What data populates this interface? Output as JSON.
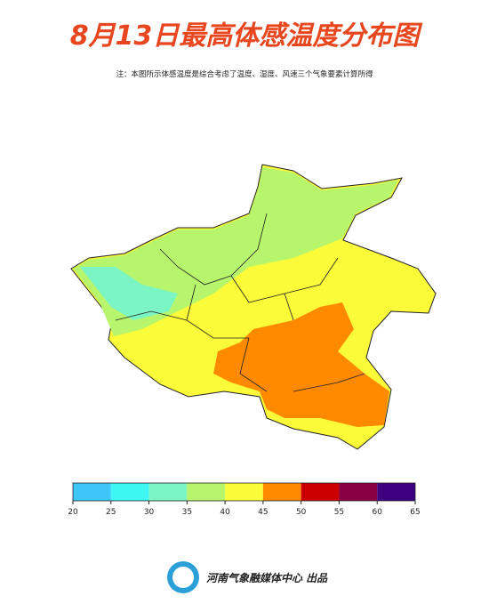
{
  "title": "8月13日最高体感温度分布图",
  "note": "注：本图所示体感温度是综合考虑了温度、湿度、风速三个气象要素计算所得",
  "legend": {
    "bins": [
      20,
      25,
      30,
      35,
      40,
      45,
      50,
      55,
      60,
      65
    ],
    "colors": [
      "#3ec6f7",
      "#3cf7f4",
      "#7cf5c4",
      "#b6f56c",
      "#fbfb3a",
      "#ff8a00",
      "#cc0000",
      "#8a0044",
      "#3f0080"
    ]
  },
  "footer": "河南气象融媒体中心 出品"
}
